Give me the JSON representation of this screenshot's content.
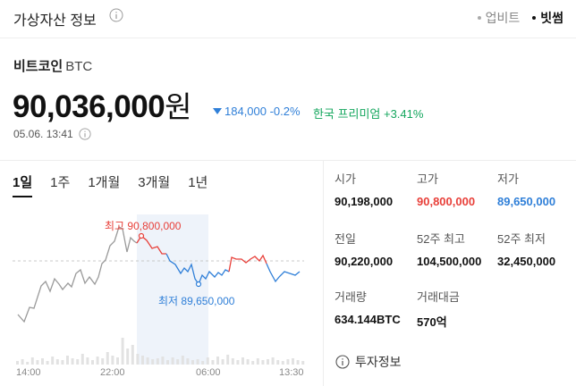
{
  "header": {
    "title": "가상자산 정보",
    "sources": [
      {
        "label": "업비트",
        "active": false
      },
      {
        "label": "빗썸",
        "active": true
      }
    ]
  },
  "coin": {
    "name": "비트코인",
    "symbol": "BTC",
    "price": "90,036,000",
    "unit": "원",
    "change": "184,000 -0.2%",
    "premium_label": "한국 프리미엄 +3.41%",
    "timestamp": "05.06. 13:41"
  },
  "period_tabs": [
    "1일",
    "1주",
    "1개월",
    "3개월",
    "1년"
  ],
  "chart": {
    "high_label": "최고 90,800,000",
    "low_label": "최저 89,650,000",
    "x_ticks": [
      "14:00",
      "22:00",
      "06:00",
      "13:30"
    ]
  },
  "chart_data": {
    "type": "line",
    "x": [
      "14:00",
      "22:00",
      "06:00",
      "13:30"
    ],
    "prev_close": 90220000,
    "high": 90800000,
    "low": 89650000,
    "close": 90036000,
    "annotations": [
      "최고 90,800,000",
      "최저 89,650,000"
    ],
    "colors": {
      "up": "#e8403a",
      "down": "#2f7fd8",
      "neutral": "#9a9a9a"
    }
  },
  "stats": {
    "open_label": "시가",
    "open": "90,198,000",
    "high_label": "고가",
    "high": "90,800,000",
    "low_label": "저가",
    "low": "89,650,000",
    "prev_label": "전일",
    "prev": "90,220,000",
    "w52_high_label": "52주 최고",
    "w52_high": "104,500,000",
    "w52_low_label": "52주 최저",
    "w52_low": "32,450,000",
    "volume_label": "거래량",
    "volume": "634.144BTC",
    "amount_label": "거래대금",
    "amount": "570억"
  },
  "invest_info": "투자정보"
}
